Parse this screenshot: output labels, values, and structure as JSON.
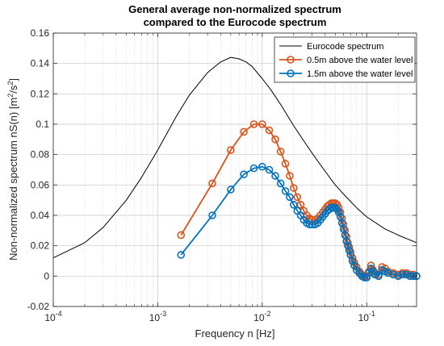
{
  "chart_data": {
    "type": "line",
    "title": [
      "General average non-normalized spectrum",
      "compared to the Eurocode spectrum"
    ],
    "xlabel": "Frequency n [Hz]",
    "ylabel_parts": [
      "Non-normalized spectrum nS(n) [m",
      "2",
      "/s",
      "2",
      "]"
    ],
    "xscale": "log",
    "xlim": [
      0.0001,
      0.3
    ],
    "ylim": [
      -0.02,
      0.16
    ],
    "grid": true,
    "minor_grid_x": true,
    "legend_position": "top-right",
    "x_ticks": [
      {
        "value": 0.0001,
        "base": "10",
        "exp": "-4"
      },
      {
        "value": 0.001,
        "base": "10",
        "exp": "-3"
      },
      {
        "value": 0.01,
        "base": "10",
        "exp": "-2"
      },
      {
        "value": 0.1,
        "base": "10",
        "exp": "-1"
      }
    ],
    "y_ticks": [
      {
        "value": -0.02,
        "label": "-0.02"
      },
      {
        "value": 0,
        "label": "0"
      },
      {
        "value": 0.02,
        "label": "0.02"
      },
      {
        "value": 0.04,
        "label": "0.04"
      },
      {
        "value": 0.06,
        "label": "0.06"
      },
      {
        "value": 0.08,
        "label": "0.08"
      },
      {
        "value": 0.1,
        "label": "0.1"
      },
      {
        "value": 0.12,
        "label": "0.12"
      },
      {
        "value": 0.14,
        "label": "0.14"
      },
      {
        "value": 0.16,
        "label": "0.16"
      }
    ],
    "series": [
      {
        "name": "Eurocode spectrum",
        "color": "#000000",
        "marker": "none",
        "x": [
          0.0001,
          0.0002,
          0.0003,
          0.0005,
          0.0007,
          0.001,
          0.0015,
          0.002,
          0.003,
          0.004,
          0.005,
          0.006,
          0.007,
          0.008,
          0.01,
          0.012,
          0.015,
          0.02,
          0.025,
          0.03,
          0.04,
          0.05,
          0.06,
          0.08,
          0.1,
          0.15,
          0.2,
          0.3
        ],
        "y": [
          0.012,
          0.022,
          0.032,
          0.05,
          0.065,
          0.083,
          0.105,
          0.119,
          0.134,
          0.141,
          0.144,
          0.143,
          0.141,
          0.138,
          0.13,
          0.123,
          0.113,
          0.099,
          0.089,
          0.081,
          0.069,
          0.06,
          0.054,
          0.045,
          0.039,
          0.031,
          0.027,
          0.022
        ]
      },
      {
        "name": "0.5m above the water level",
        "color": "#D95319",
        "marker": "circle",
        "x": [
          0.00167,
          0.00333,
          0.005,
          0.00667,
          0.00833,
          0.01,
          0.01167,
          0.01333,
          0.015,
          0.01667,
          0.01833,
          0.02,
          0.02167,
          0.02333,
          0.025,
          0.02667,
          0.02833,
          0.03,
          0.032,
          0.034,
          0.036,
          0.038,
          0.04,
          0.042,
          0.044,
          0.046,
          0.048,
          0.05,
          0.052,
          0.054,
          0.056,
          0.058,
          0.06,
          0.062,
          0.064,
          0.066,
          0.068,
          0.07,
          0.073,
          0.076,
          0.08,
          0.085,
          0.09,
          0.095,
          0.1,
          0.105,
          0.11,
          0.115,
          0.12,
          0.13,
          0.14,
          0.15,
          0.16,
          0.18,
          0.2,
          0.22,
          0.24,
          0.26,
          0.28,
          0.3
        ],
        "y": [
          0.027,
          0.061,
          0.083,
          0.095,
          0.1,
          0.1,
          0.096,
          0.09,
          0.082,
          0.074,
          0.066,
          0.058,
          0.052,
          0.047,
          0.043,
          0.04,
          0.038,
          0.037,
          0.037,
          0.038,
          0.04,
          0.042,
          0.044,
          0.046,
          0.047,
          0.048,
          0.048,
          0.048,
          0.047,
          0.045,
          0.042,
          0.038,
          0.034,
          0.03,
          0.026,
          0.022,
          0.019,
          0.016,
          0.012,
          0.009,
          0.006,
          0.003,
          0.001,
          0.0,
          0.0,
          0.003,
          0.007,
          0.004,
          0.002,
          0.001,
          0.006,
          0.005,
          0.003,
          0.002,
          0.001,
          0.002,
          0.002,
          0.001,
          0.001,
          0.0
        ]
      },
      {
        "name": "1.5m above the water level",
        "color": "#0072BD",
        "marker": "circle",
        "x": [
          0.00167,
          0.00333,
          0.005,
          0.00667,
          0.00833,
          0.01,
          0.01167,
          0.01333,
          0.015,
          0.01667,
          0.01833,
          0.02,
          0.02167,
          0.02333,
          0.025,
          0.02667,
          0.02833,
          0.03,
          0.032,
          0.034,
          0.036,
          0.038,
          0.04,
          0.042,
          0.044,
          0.046,
          0.048,
          0.05,
          0.052,
          0.054,
          0.056,
          0.058,
          0.06,
          0.062,
          0.064,
          0.066,
          0.068,
          0.07,
          0.073,
          0.076,
          0.08,
          0.085,
          0.09,
          0.095,
          0.1,
          0.105,
          0.11,
          0.115,
          0.12,
          0.13,
          0.14,
          0.15,
          0.16,
          0.18,
          0.2,
          0.22,
          0.24,
          0.26,
          0.28,
          0.3
        ],
        "y": [
          0.014,
          0.04,
          0.057,
          0.067,
          0.071,
          0.072,
          0.07,
          0.066,
          0.061,
          0.056,
          0.052,
          0.047,
          0.043,
          0.04,
          0.037,
          0.035,
          0.034,
          0.034,
          0.034,
          0.035,
          0.037,
          0.039,
          0.041,
          0.043,
          0.044,
          0.045,
          0.045,
          0.045,
          0.044,
          0.042,
          0.039,
          0.035,
          0.031,
          0.027,
          0.023,
          0.02,
          0.017,
          0.014,
          0.01,
          0.007,
          0.004,
          0.002,
          0.0,
          -0.001,
          -0.001,
          0.002,
          0.005,
          0.003,
          0.001,
          0.0,
          0.004,
          0.003,
          0.002,
          0.001,
          0.0,
          0.001,
          0.001,
          0.0,
          0.0,
          0.0
        ]
      }
    ]
  }
}
